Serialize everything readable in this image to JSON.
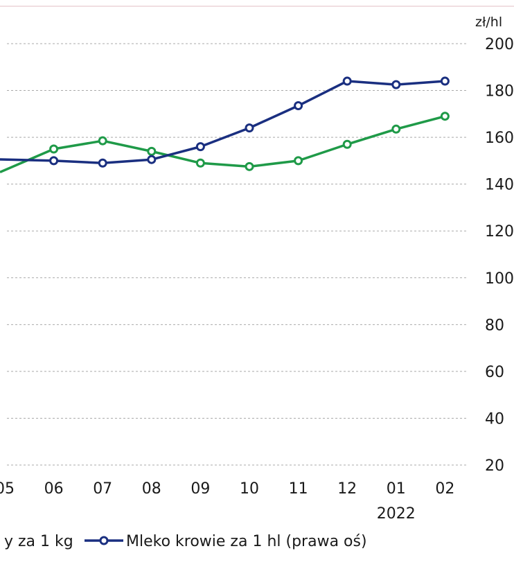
{
  "chart_data": {
    "type": "line",
    "categories": [
      "05",
      "06",
      "07",
      "08",
      "09",
      "10",
      "11",
      "12",
      "01",
      "02"
    ],
    "category_sublabels": {
      "01": "2022"
    },
    "y_right": {
      "unit_label": "zł/hl",
      "ticks": [
        20,
        40,
        60,
        80,
        100,
        120,
        140,
        160,
        180,
        200
      ],
      "ylim": [
        20,
        200
      ]
    },
    "grid": "horizontal-dashed",
    "series": [
      {
        "name": "y za 1 kg",
        "color": "#1f9a48",
        "values": [
          146,
          155,
          158.5,
          154,
          149,
          147.5,
          150,
          157,
          163.5,
          169
        ]
      },
      {
        "name": "Mleko krowie za 1 hl (prawa oś)",
        "color": "#1a2f80",
        "values": [
          150.5,
          150,
          149,
          150.5,
          156,
          164,
          173.5,
          184,
          182.5,
          184
        ]
      }
    ],
    "legend_position": "bottom"
  }
}
